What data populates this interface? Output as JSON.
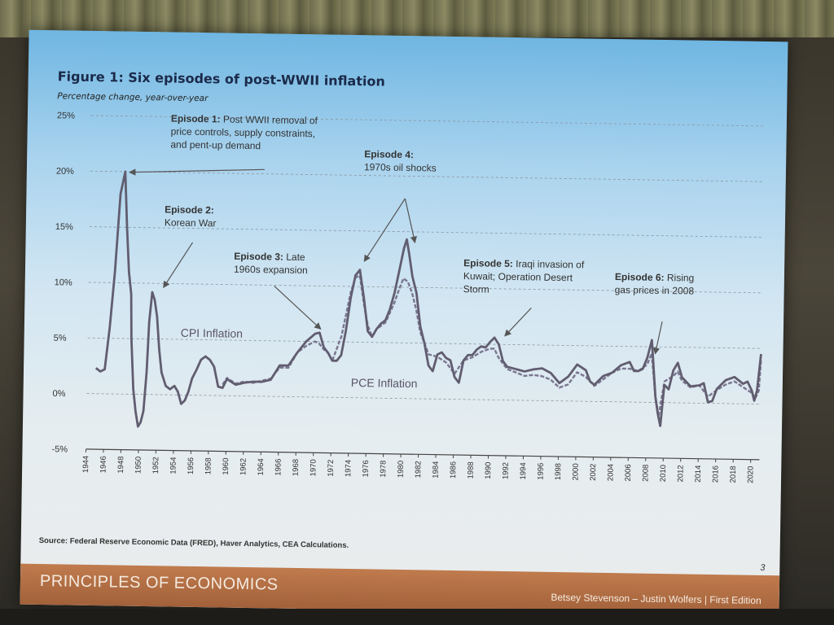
{
  "figure": {
    "title": "Figure 1: Six episodes of post-WWII inflation",
    "subtitle": "Percentage change, year-over-year",
    "source": "Source: Federal Reserve Economic Data (FRED), Haver Analytics, CEA Calculations.",
    "page_number": "3"
  },
  "footer": {
    "course": "PRINCIPLES OF ECONOMICS",
    "authors": "Betsey Stevenson – Justin Wolfers | First Edition"
  },
  "annotations": [
    {
      "lines": [
        {
          "bold": "Episode 1:",
          "text": " Post WWII removal of"
        },
        {
          "text": "price controls, supply constraints,"
        },
        {
          "text": "and pent-up demand"
        }
      ]
    },
    {
      "lines": [
        {
          "bold": "Episode 2:"
        },
        {
          "text": "Korean War"
        }
      ]
    },
    {
      "lines": [
        {
          "bold": "Episode 3:",
          "text": " Late"
        },
        {
          "text": "1960s expansion"
        }
      ]
    },
    {
      "lines": [
        {
          "bold": "Episode 4:"
        },
        {
          "text": "1970s oil shocks"
        }
      ]
    },
    {
      "lines": [
        {
          "bold": "Episode 5:",
          "text": " Iraqi invasion of"
        },
        {
          "text": "Kuwait; Operation Desert"
        },
        {
          "text": "Storm"
        }
      ]
    },
    {
      "lines": [
        {
          "bold": "Episode 6:",
          "text": " Rising"
        },
        {
          "text": "gas prices in 2008"
        }
      ]
    }
  ],
  "chart_data": {
    "type": "line",
    "title": "Figure 1: Six episodes of post-WWII inflation",
    "ylabel": "Percentage change, year-over-year",
    "ylim": [
      -5,
      25
    ],
    "xlim": [
      1944,
      2021
    ],
    "grid": true,
    "y_ticks": [
      "25%",
      "20%",
      "15%",
      "10%",
      "5%",
      "0%",
      "-5%"
    ],
    "x_ticks": [
      "1944",
      "1946",
      "1948",
      "1950",
      "1952",
      "1954",
      "1956",
      "1958",
      "1960",
      "1962",
      "1964",
      "1966",
      "1968",
      "1970",
      "1972",
      "1974",
      "1976",
      "1978",
      "1980",
      "1982",
      "1984",
      "1986",
      "1988",
      "1990",
      "1992",
      "1994",
      "1996",
      "1998",
      "2000",
      "2002",
      "2004",
      "2006",
      "2008",
      "2010",
      "2012",
      "2014",
      "2016",
      "2018",
      "2020"
    ],
    "series": [
      {
        "name": "CPI Inflation",
        "color": "#615d70",
        "points": [
          [
            1945,
            2.3
          ],
          [
            1945.5,
            2.0
          ],
          [
            1946,
            2.2
          ],
          [
            1946.5,
            6.0
          ],
          [
            1947,
            11.0
          ],
          [
            1947.5,
            18.0
          ],
          [
            1948,
            20.0
          ],
          [
            1948.3,
            15.0
          ],
          [
            1948.6,
            11.0
          ],
          [
            1948.9,
            9.0
          ],
          [
            1949,
            5.0
          ],
          [
            1949.3,
            0.5
          ],
          [
            1949.6,
            -1.5
          ],
          [
            1949.9,
            -2.9
          ],
          [
            1950.2,
            -2.5
          ],
          [
            1950.5,
            -1.5
          ],
          [
            1950.8,
            2.0
          ],
          [
            1951,
            6.5
          ],
          [
            1951.3,
            9.2
          ],
          [
            1951.6,
            8.5
          ],
          [
            1951.9,
            7.0
          ],
          [
            1952.2,
            4.0
          ],
          [
            1952.5,
            2.0
          ],
          [
            1953,
            0.8
          ],
          [
            1953.5,
            0.5
          ],
          [
            1954,
            0.8
          ],
          [
            1954.4,
            0.3
          ],
          [
            1954.8,
            -0.8
          ],
          [
            1955.2,
            -0.5
          ],
          [
            1955.6,
            0.3
          ],
          [
            1956,
            1.5
          ],
          [
            1956.5,
            2.3
          ],
          [
            1957,
            3.2
          ],
          [
            1957.5,
            3.5
          ],
          [
            1958,
            3.2
          ],
          [
            1958.5,
            2.6
          ],
          [
            1959,
            0.8
          ],
          [
            1959.5,
            0.7
          ],
          [
            1960,
            1.5
          ],
          [
            1961,
            1.0
          ],
          [
            1962,
            1.2
          ],
          [
            1963,
            1.3
          ],
          [
            1964,
            1.3
          ],
          [
            1965,
            1.5
          ],
          [
            1966,
            2.8
          ],
          [
            1967,
            2.8
          ],
          [
            1968,
            4.0
          ],
          [
            1969,
            5.0
          ],
          [
            1970,
            5.7
          ],
          [
            1970.5,
            5.8
          ],
          [
            1971,
            4.5
          ],
          [
            1971.5,
            4.0
          ],
          [
            1972,
            3.3
          ],
          [
            1972.5,
            3.3
          ],
          [
            1973,
            3.8
          ],
          [
            1973.5,
            6.0
          ],
          [
            1974,
            9.0
          ],
          [
            1974.5,
            11.0
          ],
          [
            1975,
            11.5
          ],
          [
            1975.5,
            9.0
          ],
          [
            1976,
            6.0
          ],
          [
            1976.5,
            5.5
          ],
          [
            1977,
            6.2
          ],
          [
            1977.5,
            6.7
          ],
          [
            1978,
            7.0
          ],
          [
            1978.5,
            8.0
          ],
          [
            1979,
            9.5
          ],
          [
            1979.5,
            11.5
          ],
          [
            1980,
            13.5
          ],
          [
            1980.3,
            14.3
          ],
          [
            1980.6,
            13.0
          ],
          [
            1981,
            11.0
          ],
          [
            1981.5,
            9.5
          ],
          [
            1982,
            6.5
          ],
          [
            1982.5,
            5.0
          ],
          [
            1983,
            3.0
          ],
          [
            1983.5,
            2.5
          ],
          [
            1984,
            4.0
          ],
          [
            1984.5,
            4.2
          ],
          [
            1985,
            3.7
          ],
          [
            1985.5,
            3.5
          ],
          [
            1986,
            2.0
          ],
          [
            1986.5,
            1.5
          ],
          [
            1987,
            3.5
          ],
          [
            1987.5,
            4.0
          ],
          [
            1988,
            4.0
          ],
          [
            1988.5,
            4.5
          ],
          [
            1989,
            4.8
          ],
          [
            1989.5,
            4.7
          ],
          [
            1990,
            5.2
          ],
          [
            1990.5,
            5.6
          ],
          [
            1991,
            5.0
          ],
          [
            1991.5,
            3.5
          ],
          [
            1992,
            3.0
          ],
          [
            1993,
            2.8
          ],
          [
            1994,
            2.6
          ],
          [
            1995,
            2.8
          ],
          [
            1996,
            2.9
          ],
          [
            1997,
            2.5
          ],
          [
            1998,
            1.6
          ],
          [
            1999,
            2.2
          ],
          [
            2000,
            3.3
          ],
          [
            2001,
            2.8
          ],
          [
            2001.5,
            1.8
          ],
          [
            2002,
            1.5
          ],
          [
            2003,
            2.3
          ],
          [
            2004,
            2.6
          ],
          [
            2005,
            3.3
          ],
          [
            2006,
            3.6
          ],
          [
            2006.5,
            2.8
          ],
          [
            2007,
            2.8
          ],
          [
            2007.5,
            3.0
          ],
          [
            2008,
            4.0
          ],
          [
            2008.5,
            5.6
          ],
          [
            2009,
            0.5
          ],
          [
            2009.3,
            -1.0
          ],
          [
            2009.6,
            -2.1
          ],
          [
            2010,
            1.6
          ],
          [
            2010.5,
            1.2
          ],
          [
            2011,
            2.9
          ],
          [
            2011.5,
            3.6
          ],
          [
            2012,
            2.3
          ],
          [
            2013,
            1.5
          ],
          [
            2014,
            1.6
          ],
          [
            2014.5,
            1.8
          ],
          [
            2015,
            0.1
          ],
          [
            2015.5,
            0.2
          ],
          [
            2016,
            1.3
          ],
          [
            2017,
            2.1
          ],
          [
            2018,
            2.4
          ],
          [
            2019,
            1.8
          ],
          [
            2019.5,
            2.0
          ],
          [
            2020,
            1.2
          ],
          [
            2020.3,
            0.3
          ],
          [
            2020.6,
            1.2
          ],
          [
            2021,
            4.5
          ]
        ]
      },
      {
        "name": "PCE Inflation",
        "color": "#7a7690",
        "points": [
          [
            1959.5,
            1.0
          ],
          [
            1960,
            1.6
          ],
          [
            1961,
            1.1
          ],
          [
            1962,
            1.3
          ],
          [
            1963,
            1.2
          ],
          [
            1964,
            1.4
          ],
          [
            1965,
            1.6
          ],
          [
            1966,
            2.6
          ],
          [
            1967,
            2.6
          ],
          [
            1968,
            4.0
          ],
          [
            1969,
            4.6
          ],
          [
            1970,
            5.0
          ],
          [
            1970.5,
            4.8
          ],
          [
            1971,
            4.3
          ],
          [
            1971.5,
            4.0
          ],
          [
            1972,
            3.3
          ],
          [
            1973,
            5.5
          ],
          [
            1974,
            9.5
          ],
          [
            1974.5,
            10.8
          ],
          [
            1975,
            11.0
          ],
          [
            1975.5,
            8.5
          ],
          [
            1976,
            6.5
          ],
          [
            1976.5,
            5.5
          ],
          [
            1977,
            6.2
          ],
          [
            1978,
            6.8
          ],
          [
            1979,
            8.6
          ],
          [
            1979.5,
            9.8
          ],
          [
            1980,
            10.8
          ],
          [
            1980.5,
            10.5
          ],
          [
            1981,
            9.5
          ],
          [
            1981.5,
            8.0
          ],
          [
            1982,
            6.0
          ],
          [
            1983,
            4.0
          ],
          [
            1984,
            3.8
          ],
          [
            1985,
            3.3
          ],
          [
            1986,
            2.3
          ],
          [
            1987,
            3.5
          ],
          [
            1988,
            3.8
          ],
          [
            1989,
            4.3
          ],
          [
            1990,
            4.6
          ],
          [
            1990.5,
            4.6
          ],
          [
            1991,
            3.8
          ],
          [
            1992,
            2.8
          ],
          [
            1993,
            2.5
          ],
          [
            1994,
            2.2
          ],
          [
            1995,
            2.3
          ],
          [
            1996,
            2.2
          ],
          [
            1997,
            1.9
          ],
          [
            1998,
            1.2
          ],
          [
            1999,
            1.5
          ],
          [
            2000,
            2.6
          ],
          [
            2001,
            2.2
          ],
          [
            2002,
            1.4
          ],
          [
            2003,
            2.0
          ],
          [
            2004,
            2.6
          ],
          [
            2005,
            3.0
          ],
          [
            2006,
            3.0
          ],
          [
            2007,
            2.8
          ],
          [
            2008,
            3.4
          ],
          [
            2008.5,
            4.4
          ],
          [
            2009,
            0.5
          ],
          [
            2009.4,
            -1.2
          ],
          [
            2010,
            1.9
          ],
          [
            2011,
            2.4
          ],
          [
            2011.5,
            2.8
          ],
          [
            2012,
            2.0
          ],
          [
            2013,
            1.4
          ],
          [
            2014,
            1.6
          ],
          [
            2015,
            0.6
          ],
          [
            2016,
            1.2
          ],
          [
            2017,
            1.7
          ],
          [
            2018,
            2.0
          ],
          [
            2019,
            1.5
          ],
          [
            2020,
            1.0
          ],
          [
            2020.4,
            0.5
          ],
          [
            2020.8,
            1.2
          ],
          [
            2021,
            3.9
          ]
        ]
      }
    ]
  }
}
